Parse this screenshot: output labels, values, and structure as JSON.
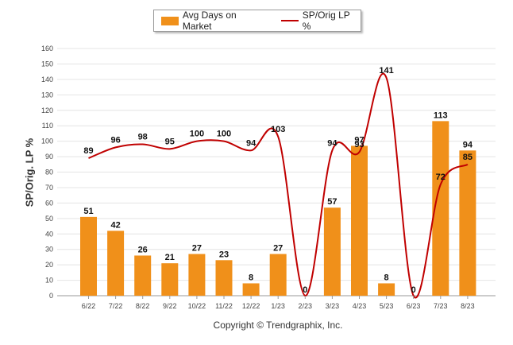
{
  "chart_data": {
    "type": "bar",
    "categories": [
      "6/22",
      "7/22",
      "8/22",
      "9/22",
      "10/22",
      "11/22",
      "12/22",
      "1/23",
      "2/23",
      "3/23",
      "4/23",
      "5/23",
      "6/23",
      "7/23",
      "8/23"
    ],
    "series": [
      {
        "name": "Avg Days on Market",
        "type": "bar",
        "color": "#f0901a",
        "values": [
          51,
          42,
          26,
          21,
          27,
          23,
          8,
          27,
          0,
          57,
          97,
          8,
          0,
          113,
          94
        ]
      },
      {
        "name": "SP/Orig LP %",
        "type": "line",
        "color": "#c00000",
        "values": [
          89,
          96,
          98,
          95,
          100,
          100,
          94,
          103,
          0,
          94,
          93,
          141,
          0,
          72,
          85
        ]
      }
    ],
    "ylabel": "SP/Orig. LP %",
    "ylim": [
      0,
      160
    ],
    "yticks": [
      0,
      10,
      20,
      30,
      40,
      50,
      60,
      70,
      80,
      90,
      100,
      110,
      120,
      130,
      140,
      150,
      160
    ],
    "grid": true,
    "legend_position": "top-center"
  },
  "legend": {
    "bar_label": "Avg Days on Market",
    "line_label": "SP/Orig LP %"
  },
  "axis": {
    "ylabel": "SP/Orig. LP %"
  },
  "footer": {
    "copyright": "Copyright © Trendgraphix, Inc."
  }
}
